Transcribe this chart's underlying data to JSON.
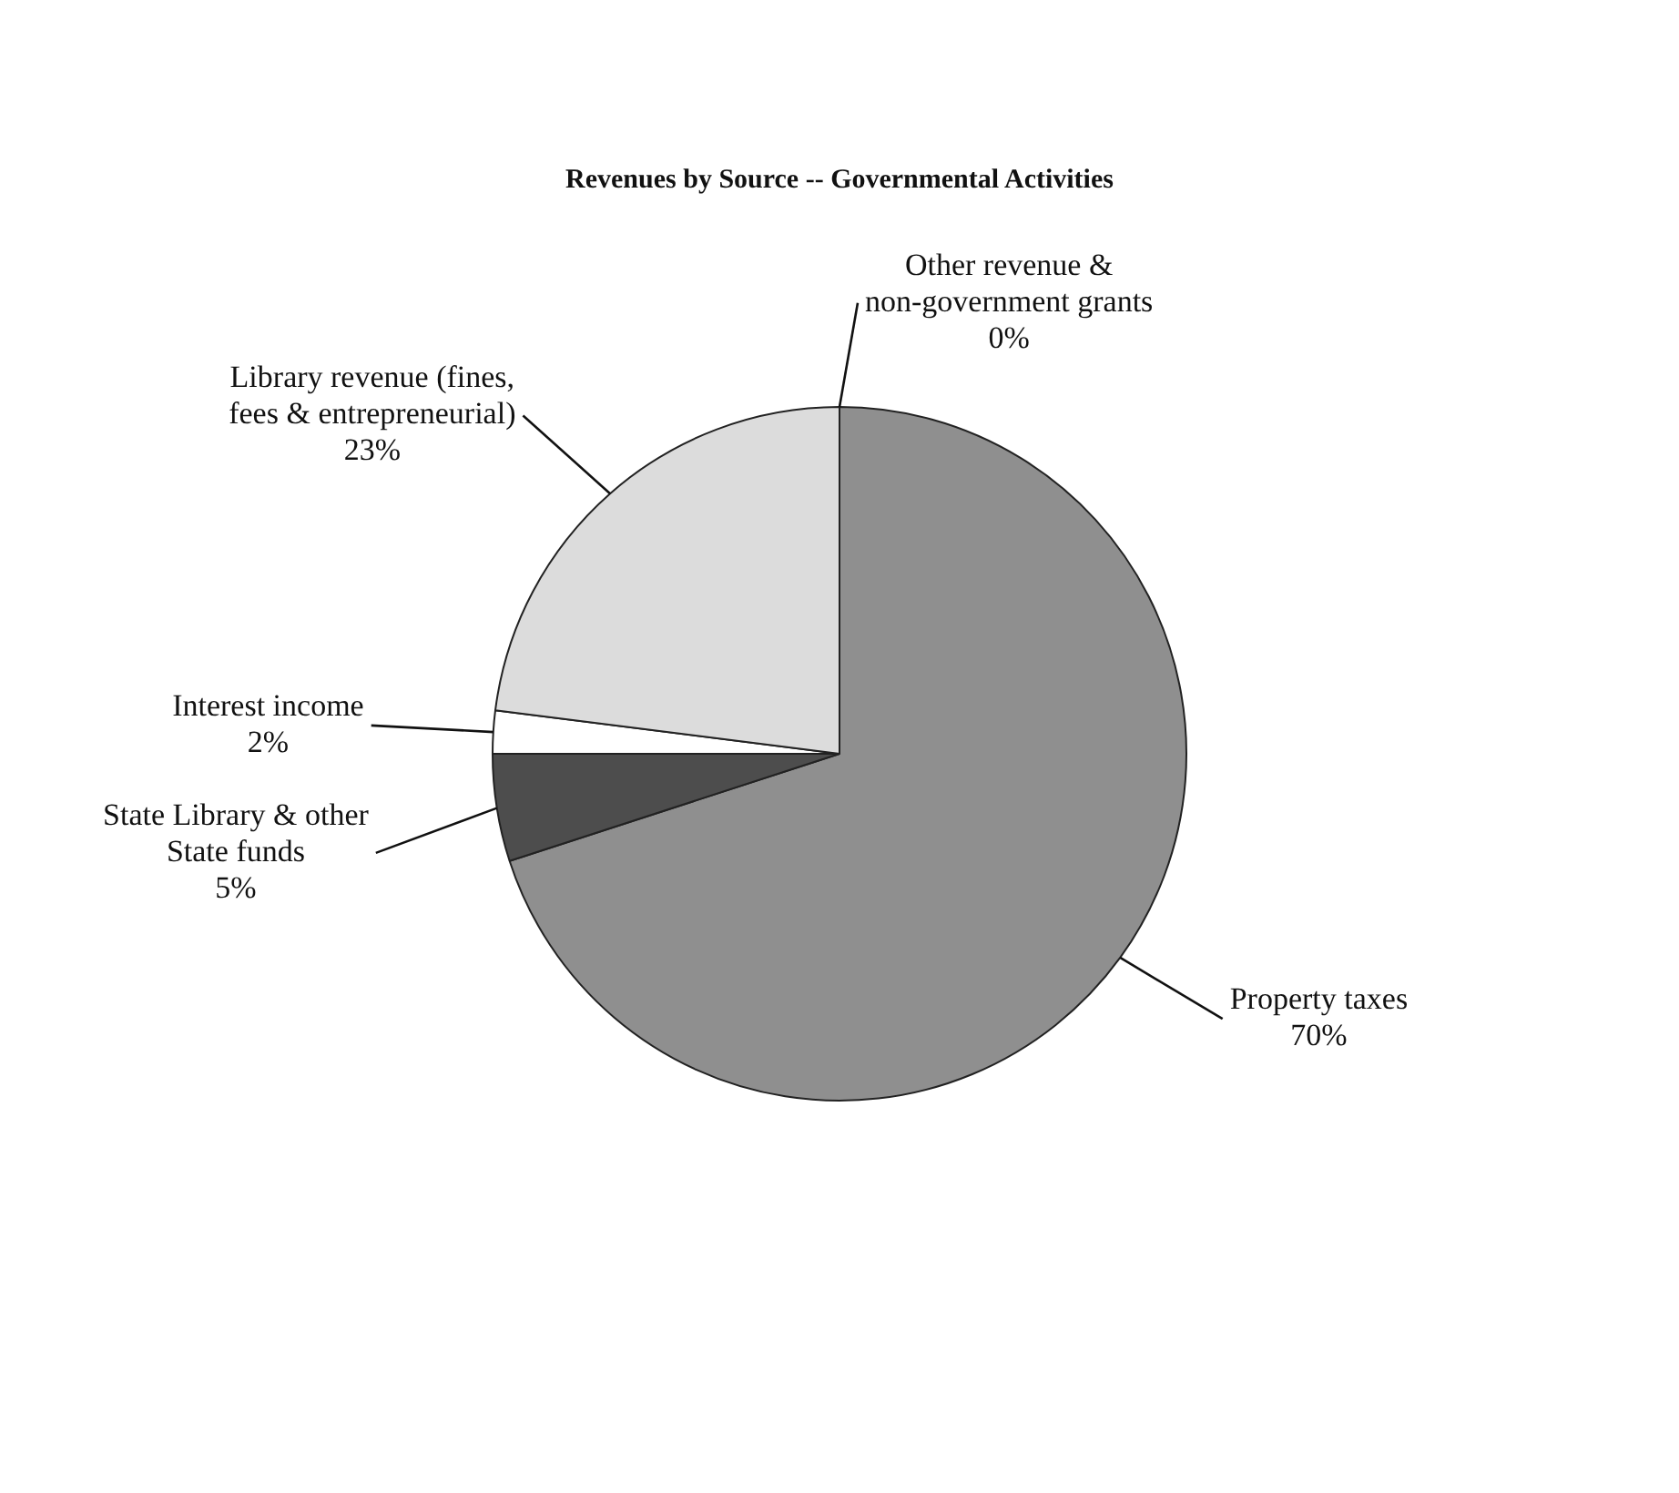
{
  "chart_data": {
    "type": "pie",
    "title": "Revenues by Source -- Governmental Activities",
    "categories": [
      "Property taxes",
      "State Library & other State funds",
      "Interest income",
      "Library revenue (fines, fees & entrepreneurial)",
      "Other revenue & non-government grants"
    ],
    "values": [
      70,
      5,
      2,
      23,
      0
    ],
    "value_labels": [
      "70%",
      "5%",
      "2%",
      "23%",
      "0%"
    ],
    "colors": [
      "#8f8f8f",
      "#4d4d4d",
      "#ffffff",
      "#dcdcdc",
      "#000000"
    ],
    "legend": false
  }
}
